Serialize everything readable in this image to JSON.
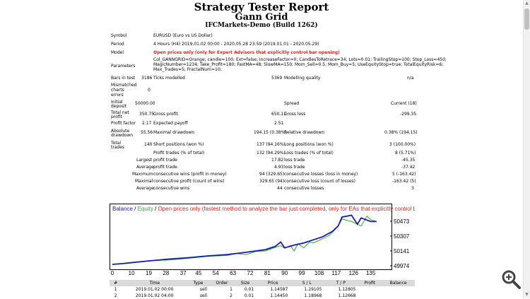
{
  "report": {
    "title": "Strategy Tester Report",
    "subtitle": "Gann Grid",
    "server": "IFCMarkets-Demo (Build 1262)"
  },
  "summary": {
    "symbol_label": "Symbol",
    "symbol": "EURUSD (Euro vs US Dollar)",
    "period_label": "Period",
    "period": "4 Hours (H4) 2019.01.02 00:00 - 2020.05.28 23:59 (2019.01.01 - 2020.05.29)",
    "model_label": "Model",
    "model": "Open prices only (only for Expert Advisors that explicitly control bar opening)",
    "parameters_label": "Parameters",
    "parameters_1": "Col_GANNGRID=Orange; candle=100; Ext=false; IncreaseFactor=0; CandlesToRetrace=34; Lots=0.01; TrailingStop=100; Stop_Loss=450;",
    "parameters_2": "MagicNumber=1234; Take_Profit=180; FastMA=48; SlowMA=150; Mom_Sell=0.5; Mom_Buy=5; UseEquityStop=true; TotalEquityRisk=6;",
    "parameters_3": "Max_Trades=5; FractalNum=10;",
    "bars_label": "Bars in test",
    "bars": "3186",
    "ticks_label": "Ticks modelled",
    "ticks": "5369",
    "quality_label": "Modelling quality",
    "quality": "n/a",
    "mismatch_label_1": "Mismatched",
    "mismatch_label_2": "charts",
    "mismatch_label_3": "errors",
    "mismatch": "0",
    "deposit_label_1": "Initial",
    "deposit_label_2": "deposit",
    "deposit": "50000.00",
    "spread_label": "Spread",
    "spread": "Current (18)",
    "net_label_1": "Total net",
    "net_label_2": "profit",
    "net": "350.75",
    "gp_label": "Gross profit",
    "gp": "650.11",
    "gl_label": "Gross loss",
    "gl": "-299.35",
    "pf_label": "Profit factor",
    "pf": "2.17",
    "ep_label": "Expected payoff",
    "ep": "2.51",
    "ad_label_1": "Absolute",
    "ad_label_2": "drawdown",
    "ad": "55.56",
    "md_label": "Maximal drawdown",
    "md": "194.15 (0.38%)",
    "rd_label": "Relative drawdown",
    "rd": "0.38% (194.15)",
    "tt_label_1": "Total",
    "tt_label_2": "trades",
    "tt": "140",
    "sp_label": "Short positions (won %)",
    "sp": "137 (94.16%)",
    "lp_label": "Long positions (won %)",
    "lp": "3 (100.00%)",
    "pt_label": "Profit trades (% of total)",
    "pt": "132 (94.29%)",
    "lt_label": "Loss trades (% of total)",
    "lt": "8 (5.71%)",
    "largest_label": "Largest",
    "lpt_label": "profit trade",
    "lpt": "17.82",
    "llt_label": "loss trade",
    "llt": "-45.35",
    "average_label": "Average",
    "apt_label": "profit trade",
    "apt": "4.93",
    "alt_label": "loss trade",
    "alt": "-37.42",
    "maximum_label": "Maximum",
    "mcw_label": "consecutive wins (profit in money)",
    "mcw": "94 (329.65)",
    "mcl_label": "consecutive losses (loss in money)",
    "mcl": "5 (-163.42)",
    "maximal_label": "Maximal",
    "mcp_label": "consecutive profit (count of wins)",
    "mcp": "329.65 (94)",
    "mcll_label": "consecutive loss (count of losses)",
    "mcll": "-163.42 (5)",
    "average2_label": "Average",
    "acw_label": "consecutive wins",
    "acw": "44",
    "acl_label": "consecutive losses",
    "acl": "3"
  },
  "chart_data": {
    "type": "line",
    "title_balance": "Balance",
    "title_sep1": " / ",
    "title_equity": "Equity",
    "title_sep2": " / ",
    "title_note": "Open prices only (fastest method to analyze the bar just completed, only for EAs that explicitly control b",
    "x_ticks": [
      "0",
      "10",
      "19",
      "28",
      "37",
      "45",
      "54",
      "63",
      "72",
      "81",
      "90",
      "99",
      "108",
      "117",
      "126",
      "135"
    ],
    "y_ticks": [
      "50473",
      "50307",
      "50141",
      "49974"
    ],
    "ylim": [
      49974,
      50560
    ],
    "xlim": [
      0,
      144
    ],
    "colors": {
      "balance": "#1a1ab0",
      "equity": "#22b022",
      "title_red": "#e8201a"
    },
    "series": [
      {
        "name": "Balance",
        "x": [
          0,
          5,
          10,
          20,
          30,
          40,
          50,
          60,
          70,
          80,
          85,
          88,
          90,
          95,
          100,
          105,
          110,
          115,
          118,
          120,
          125,
          128,
          130,
          135,
          138
        ],
        "y": [
          49990,
          49998,
          50010,
          50030,
          50050,
          50065,
          50085,
          50100,
          50125,
          50155,
          50190,
          50240,
          50175,
          50205,
          50230,
          50265,
          50300,
          50360,
          50420,
          50520,
          50540,
          50440,
          50510,
          50470,
          50470
        ]
      },
      {
        "name": "Equity",
        "x": [
          0,
          5,
          10,
          20,
          30,
          40,
          50,
          60,
          65,
          70,
          75,
          80,
          85,
          88,
          90,
          93,
          95,
          97,
          100,
          103,
          105,
          108,
          110,
          113,
          115,
          118,
          120,
          123,
          125,
          128,
          130,
          133,
          135,
          138
        ],
        "y": [
          49990,
          49995,
          50005,
          50030,
          50040,
          50058,
          50080,
          50090,
          50110,
          50100,
          50135,
          50140,
          50180,
          50200,
          50170,
          50200,
          50140,
          50220,
          50175,
          50240,
          50230,
          50260,
          50280,
          50310,
          50350,
          50420,
          50500,
          50480,
          50470,
          50440,
          50420,
          50530,
          50490,
          50470
        ]
      }
    ]
  },
  "orders": {
    "headers": [
      "#",
      "Time",
      "Type",
      "Order",
      "Size",
      "Price",
      "S / L",
      "T / P",
      "Profit",
      "Balance"
    ],
    "rows": [
      [
        "1",
        "2019.01.02 00:00",
        "sell",
        "1",
        "0.01",
        "1.14587",
        "1.19105",
        "1.12805",
        "",
        ""
      ],
      [
        "2",
        "2019.01.02 04:00",
        "sell",
        "2",
        "0.01",
        "1.14450",
        "1.18968",
        "1.12668",
        "",
        ""
      ]
    ]
  }
}
